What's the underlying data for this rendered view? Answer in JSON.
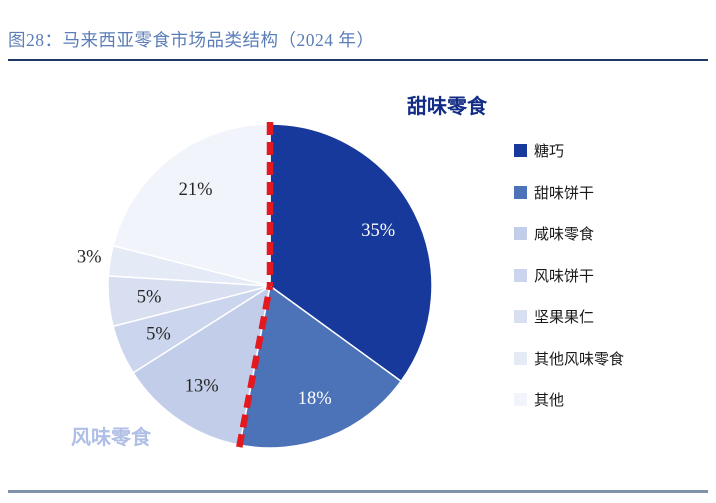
{
  "figure": {
    "title": "图28：马来西亚零食市场品类结构（2024 年）"
  },
  "chart_data": {
    "type": "pie",
    "title": "马来西亚零食市场品类结构（2024 年）",
    "unit": "percent",
    "direction": "clockwise",
    "start_angle_deg": 0,
    "legend_position": "right",
    "slices": [
      {
        "label": "糖巧",
        "value": 35,
        "display": "35%",
        "color": "#16399B"
      },
      {
        "label": "甜味饼干",
        "value": 18,
        "display": "18%",
        "color": "#4C72B8"
      },
      {
        "label": "咸味零食",
        "value": 13,
        "display": "13%",
        "color": "#C2CDE9"
      },
      {
        "label": "风味饼干",
        "value": 5,
        "display": "5%",
        "color": "#CBD5ED"
      },
      {
        "label": "坚果果仁",
        "value": 5,
        "display": "5%",
        "color": "#D8DFF1"
      },
      {
        "label": "其他风味零食",
        "value": 3,
        "display": "3%",
        "color": "#E4EAF6",
        "label_outside": true
      },
      {
        "label": "其他",
        "value": 21,
        "display": "21%",
        "color": "#F1F4FA"
      }
    ],
    "annotations": {
      "group_labels": [
        {
          "text": "甜味零食",
          "color": "#132C86"
        },
        {
          "text": "风味零食",
          "color": "#AFBFE5"
        }
      ],
      "divider_line": {
        "style": "dashed",
        "color": "#E4191F",
        "angles_deg": [
          0,
          190.8
        ]
      }
    }
  },
  "style_colors": {
    "title_text": "#5B7EB7",
    "top_divider": "#1F3864",
    "bottom_divider": "#8093AB",
    "label_dark": "#262626",
    "label_light": "#FFFFFF"
  }
}
